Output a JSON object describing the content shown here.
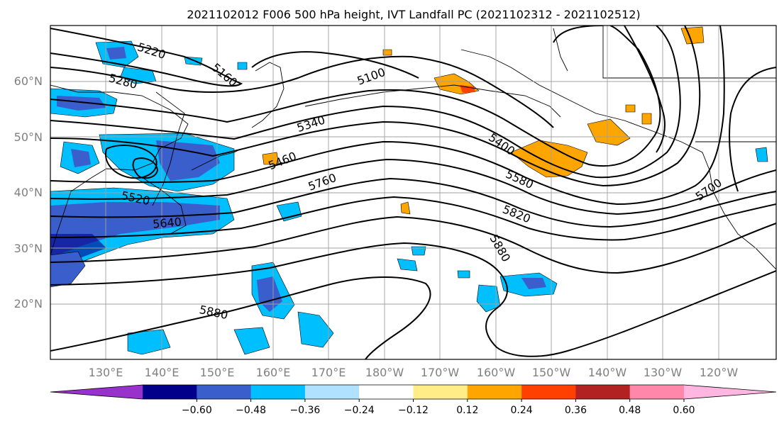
{
  "title": "2021102012 F006 500 hPa height, IVT Landfall PC (2021102312 - 2021102512)",
  "lat_labels": [
    "20°N",
    "30°N",
    "40°N",
    "50°N",
    "60°N"
  ],
  "lon_labels": [
    "130°E",
    "140°E",
    "150°E",
    "160°E",
    "170°E",
    "180°W",
    "170°W",
    "160°W",
    "150°W",
    "140°W",
    "130°W",
    "120°W"
  ],
  "contour_labels": [
    "5220",
    "5160",
    "5280",
    "5100",
    "5340",
    "5460",
    "5520",
    "5640",
    "5760",
    "5400",
    "5580",
    "5700",
    "5820",
    "5880",
    "5880"
  ],
  "colorbar": {
    "ticks": [
      "−0.60",
      "−0.48",
      "−0.36",
      "−0.24",
      "−0.12",
      "0.12",
      "0.24",
      "0.36",
      "0.48",
      "0.60"
    ],
    "colors": [
      "#9932cc",
      "#00008b",
      "#3a5fcd",
      "#00bfff",
      "#b0e2ff",
      "#ffffff",
      "#ffee88",
      "#ffa500",
      "#ff4000",
      "#b22222",
      "#ff88aa",
      "#ffb6e0"
    ]
  }
}
